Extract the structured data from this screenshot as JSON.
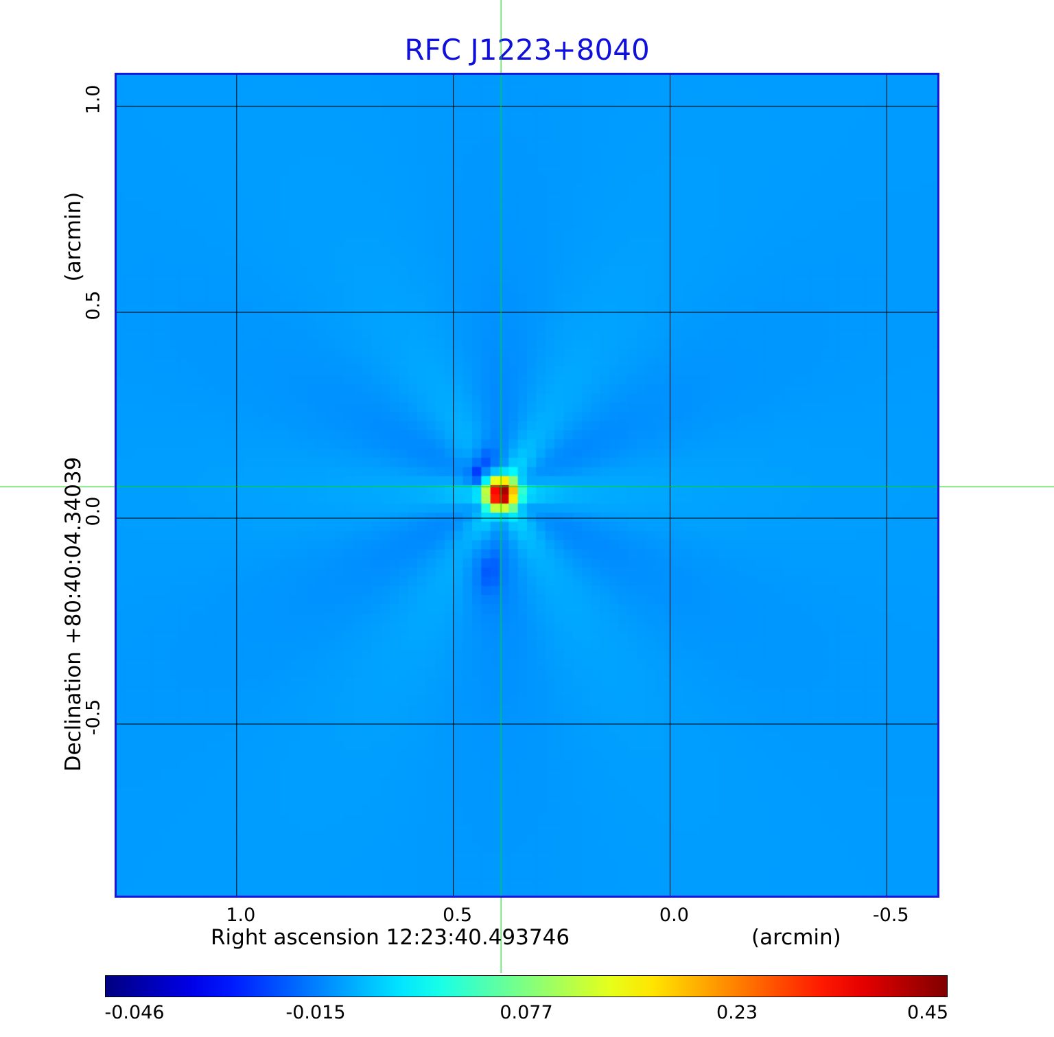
{
  "chart_data": {
    "type": "heatmap",
    "title": "RFC J1223+8040",
    "xlabel": "Right ascension  12:23:40.493746",
    "xunit": "(arcmin)",
    "ylabel": "Declination  +80:40:04.34039",
    "yunit": "(arcmin)",
    "x_ticks": [
      "1.0",
      "0.5",
      "0.0",
      "-0.5"
    ],
    "y_ticks": [
      "1.0",
      "0.5",
      "0.0",
      "-0.5"
    ],
    "xlim": [
      1.28,
      -0.62
    ],
    "ylim": [
      -0.92,
      1.08
    ],
    "grid": true,
    "crosshair": {
      "x": 0.39,
      "y": 0.076,
      "color": "#00e000"
    },
    "colormap": "jet",
    "colorbar_ticks": [
      "-0.046",
      "-0.015",
      "0.077",
      "0.23",
      "0.45"
    ],
    "value_range": [
      -0.046,
      0.45
    ],
    "source_peak": {
      "x": 0.39,
      "y": 0.06,
      "value": 0.45
    },
    "negative_lobe": {
      "x": 0.43,
      "y": 0.12,
      "value": -0.046
    },
    "background_value": -0.005
  }
}
